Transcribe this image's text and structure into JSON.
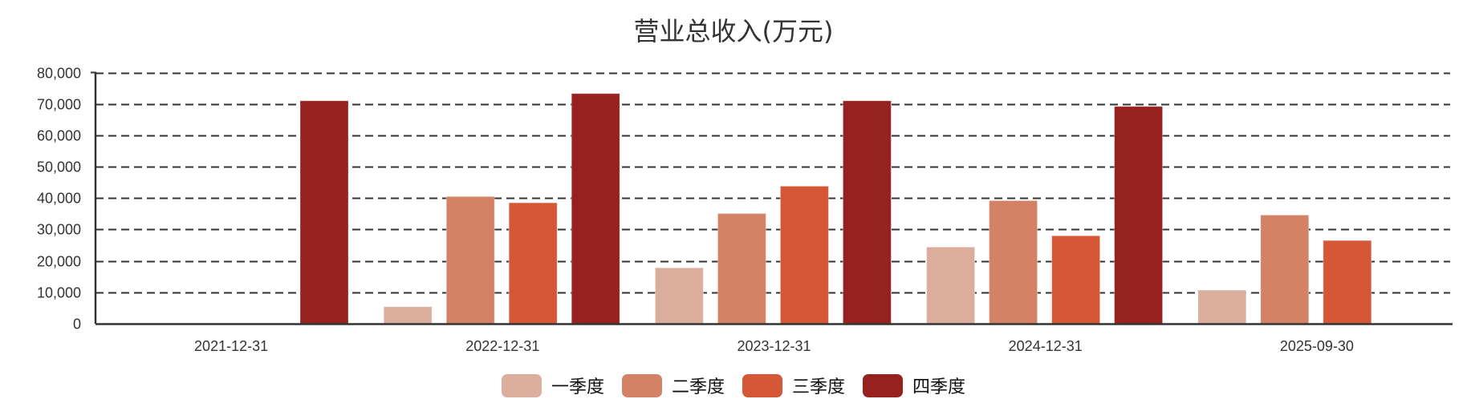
{
  "chart_data": {
    "type": "bar",
    "title": "营业总收入(万元)",
    "xlabel": "",
    "ylabel": "",
    "ylim": [
      0,
      80000
    ],
    "yticks": [
      0,
      10000,
      20000,
      30000,
      40000,
      50000,
      60000,
      70000,
      80000
    ],
    "ytick_labels": [
      "0",
      "10,000",
      "20,000",
      "30,000",
      "40,000",
      "50,000",
      "60,000",
      "70,000",
      "80,000"
    ],
    "grid": true,
    "legend_position": "bottom",
    "categories": [
      "2021-12-31",
      "2022-12-31",
      "2023-12-31",
      "2024-12-31",
      "2025-09-30"
    ],
    "series": [
      {
        "name": "一季度",
        "color": "#dbad9d",
        "values": [
          null,
          5400,
          17800,
          24400,
          10700
        ]
      },
      {
        "name": "二季度",
        "color": "#d48265",
        "values": [
          null,
          40500,
          35100,
          39200,
          34600
        ]
      },
      {
        "name": "三季度",
        "color": "#d65736",
        "values": [
          null,
          38500,
          43800,
          28000,
          26500
        ]
      },
      {
        "name": "四季度",
        "color": "#96211f",
        "values": [
          71000,
          73300,
          71000,
          69200,
          null
        ]
      }
    ]
  },
  "legend": {
    "items": [
      {
        "label": "一季度",
        "color": "#dbad9d"
      },
      {
        "label": "二季度",
        "color": "#d48265"
      },
      {
        "label": "三季度",
        "color": "#d65736"
      },
      {
        "label": "四季度",
        "color": "#96211f"
      }
    ]
  }
}
